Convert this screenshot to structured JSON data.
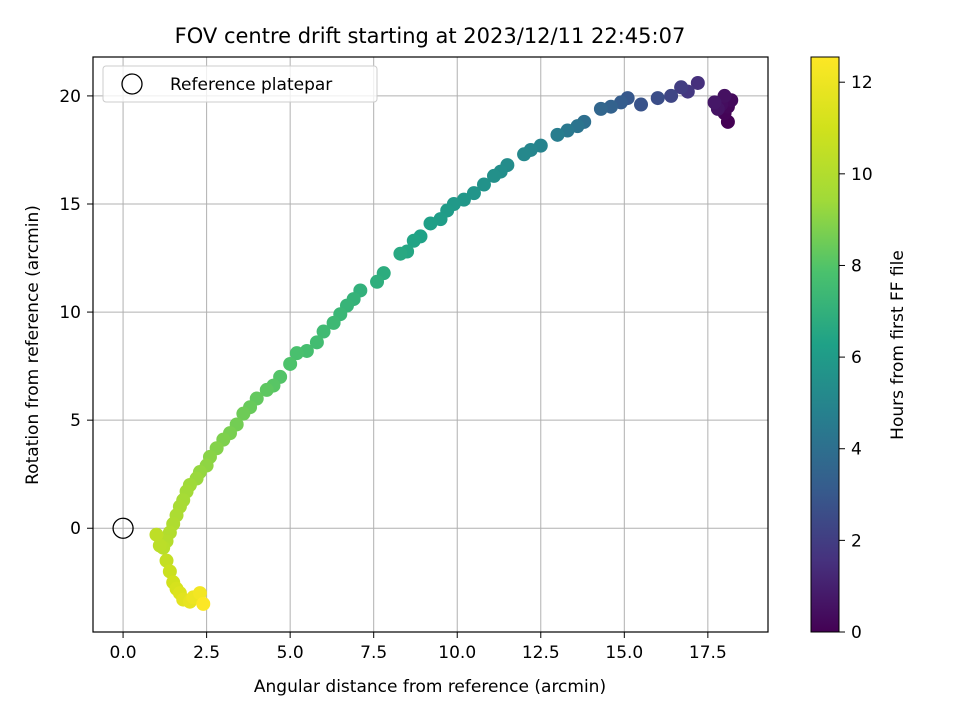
{
  "chart_data": {
    "type": "scatter",
    "title": "FOV centre drift starting at 2023/12/11 22:45:07",
    "xlabel": "Angular distance from reference (arcmin)",
    "ylabel": "Rotation from reference (arcmin)",
    "xlim": [
      -0.9,
      19.3
    ],
    "ylim": [
      -4.8,
      21.8
    ],
    "xticks": [
      0,
      2.5,
      5,
      7.5,
      10,
      12.5,
      15,
      17.5
    ],
    "xtick_labels": [
      "0.0",
      "2.5",
      "5.0",
      "7.5",
      "10.0",
      "12.5",
      "15.0",
      "17.5"
    ],
    "yticks": [
      0,
      5,
      10,
      15,
      20
    ],
    "ytick_labels": [
      "0",
      "5",
      "10",
      "15",
      "20"
    ],
    "grid": true,
    "legend": {
      "location": "upper-left",
      "entries": [
        "Reference platepar"
      ]
    },
    "reference_point": {
      "x": 0,
      "y": 0,
      "label": "Reference platepar"
    },
    "colorbar": {
      "label": "Hours from first FF file",
      "colormap": "viridis",
      "range": [
        0,
        12.55
      ],
      "ticks": [
        0,
        2,
        4,
        6,
        8,
        10,
        12
      ],
      "tick_labels": [
        "0",
        "2",
        "4",
        "6",
        "8",
        "10",
        "12"
      ]
    },
    "series": [
      {
        "x": [
          18.1,
          18.0,
          18.1,
          18.2,
          17.9,
          18.0,
          17.8,
          17.7,
          17.2,
          16.9,
          16.7,
          16.4,
          16.0,
          15.5,
          15.1,
          14.9,
          14.6,
          14.3,
          13.8,
          13.6,
          13.3,
          13.0,
          12.5,
          12.2,
          12.0,
          11.5,
          11.3,
          11.1,
          10.8,
          10.5,
          10.2,
          9.9,
          9.7,
          9.5,
          9.2,
          8.9,
          8.7,
          8.5,
          8.3,
          7.8,
          7.6,
          7.1,
          6.9,
          6.7,
          6.5,
          6.3,
          6.0,
          5.8,
          5.5,
          5.2,
          5.0,
          4.7,
          4.5,
          4.3,
          4.0,
          3.8,
          3.6,
          3.4,
          3.2,
          3.0,
          2.8,
          2.6,
          2.5,
          2.3,
          2.2,
          2.0,
          1.9,
          1.8,
          1.7,
          1.6,
          1.5,
          1.4,
          1.3,
          1.2,
          1.1,
          1.0,
          1.3,
          1.4,
          1.5,
          1.6,
          1.7,
          1.8,
          2.0,
          2.1,
          2.3,
          2.4
        ],
        "y": [
          18.8,
          19.2,
          19.5,
          19.8,
          19.6,
          20.0,
          19.4,
          19.7,
          20.6,
          20.2,
          20.4,
          20.0,
          19.9,
          19.6,
          19.9,
          19.7,
          19.5,
          19.4,
          18.8,
          18.6,
          18.4,
          18.2,
          17.7,
          17.5,
          17.3,
          16.8,
          16.5,
          16.3,
          15.9,
          15.5,
          15.2,
          15.0,
          14.7,
          14.3,
          14.1,
          13.5,
          13.3,
          12.8,
          12.7,
          11.8,
          11.4,
          11.0,
          10.6,
          10.3,
          9.9,
          9.5,
          9.1,
          8.6,
          8.2,
          8.1,
          7.6,
          7.0,
          6.6,
          6.4,
          6.0,
          5.6,
          5.3,
          4.8,
          4.4,
          4.1,
          3.7,
          3.3,
          2.9,
          2.6,
          2.3,
          2.0,
          1.7,
          1.3,
          1.0,
          0.6,
          0.2,
          -0.2,
          -0.6,
          -0.9,
          -0.8,
          -0.3,
          -1.5,
          -2.0,
          -2.5,
          -2.8,
          -3.0,
          -3.3,
          -3.4,
          -3.2,
          -3.0,
          -3.5
        ],
        "hours": [
          0.0,
          0.1,
          0.2,
          0.3,
          0.4,
          0.5,
          0.6,
          0.7,
          1.5,
          1.8,
          2.0,
          2.3,
          2.6,
          2.8,
          3.0,
          3.2,
          3.4,
          3.6,
          4.0,
          4.2,
          4.4,
          4.6,
          4.9,
          5.0,
          5.1,
          5.3,
          5.4,
          5.5,
          5.6,
          5.7,
          5.8,
          5.9,
          6.0,
          6.1,
          6.2,
          6.3,
          6.4,
          6.5,
          6.6,
          6.8,
          6.9,
          7.0,
          7.1,
          7.2,
          7.3,
          7.4,
          7.5,
          7.6,
          7.7,
          7.8,
          7.9,
          8.0,
          8.1,
          8.2,
          8.3,
          8.4,
          8.5,
          8.6,
          8.7,
          8.8,
          8.9,
          9.0,
          9.1,
          9.2,
          9.3,
          9.4,
          9.5,
          9.6,
          9.7,
          9.8,
          9.9,
          10.0,
          10.1,
          10.2,
          10.3,
          10.4,
          10.6,
          10.8,
          11.0,
          11.2,
          11.4,
          11.6,
          11.8,
          12.0,
          12.2,
          12.5
        ]
      }
    ]
  }
}
